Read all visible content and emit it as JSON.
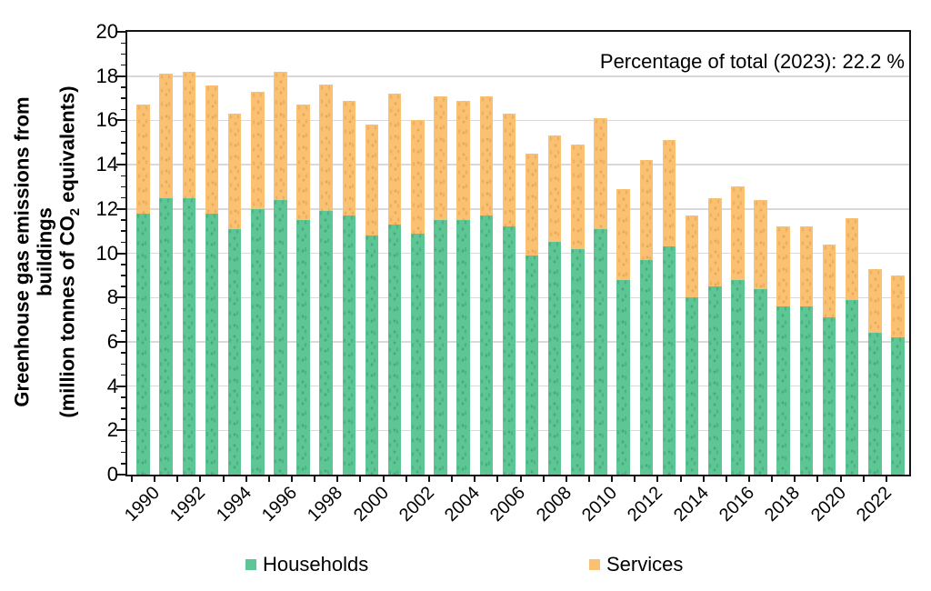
{
  "chart_data": {
    "type": "bar",
    "stacked": true,
    "title": "",
    "annotation": "Percentage of total (2023): 22.2 %",
    "ylabel_lines": [
      "Greenhouse gas emissions from",
      "buildings"
    ],
    "ylabel_line3": {
      "prefix": "(million tonnes of CO",
      "sub": "2",
      "suffix": " equivalents)"
    },
    "categories": [
      "1990",
      "1991",
      "1992",
      "1993",
      "1994",
      "1995",
      "1996",
      "1997",
      "1998",
      "1999",
      "2000",
      "2001",
      "2002",
      "2003",
      "2004",
      "2005",
      "2006",
      "2007",
      "2008",
      "2009",
      "2010",
      "2011",
      "2012",
      "2013",
      "2014",
      "2015",
      "2016",
      "2017",
      "2018",
      "2019",
      "2020",
      "2021",
      "2022",
      "2023"
    ],
    "series": [
      {
        "name": "Households",
        "color": "#5EC695",
        "values": [
          11.8,
          12.5,
          12.5,
          11.8,
          11.1,
          12.0,
          12.4,
          11.5,
          11.9,
          11.7,
          10.8,
          11.3,
          10.9,
          11.5,
          11.5,
          11.7,
          11.2,
          9.9,
          10.5,
          10.2,
          11.1,
          8.8,
          9.7,
          10.3,
          8.0,
          8.5,
          8.8,
          8.4,
          7.6,
          7.6,
          7.1,
          7.9,
          6.4,
          6.2
        ]
      },
      {
        "name": "Services",
        "color": "#FAC173",
        "values": [
          4.9,
          5.6,
          5.7,
          5.8,
          5.2,
          5.3,
          5.8,
          5.2,
          5.7,
          5.2,
          5.0,
          5.9,
          5.1,
          5.6,
          5.4,
          5.4,
          5.1,
          4.6,
          4.8,
          4.7,
          5.0,
          4.1,
          4.5,
          4.8,
          3.7,
          4.0,
          4.2,
          4.0,
          3.6,
          3.6,
          3.3,
          3.7,
          2.9,
          2.8
        ]
      }
    ],
    "ylim": [
      0,
      20
    ],
    "yticks": [
      0,
      2,
      4,
      6,
      8,
      10,
      12,
      14,
      16,
      18,
      20
    ],
    "y_minor_step": 0.5,
    "xtick_labels": [
      "1990",
      "1992",
      "1994",
      "1996",
      "1998",
      "2000",
      "2002",
      "2004",
      "2006",
      "2008",
      "2010",
      "2012",
      "2014",
      "2016",
      "2018",
      "2020",
      "2022"
    ],
    "grid": true,
    "legend_position": "bottom",
    "colors": {
      "grid": "#d9d9d9",
      "axis": "#151515"
    }
  }
}
